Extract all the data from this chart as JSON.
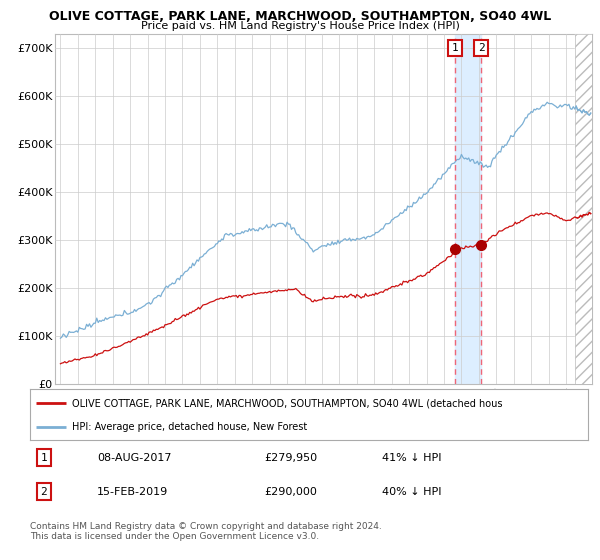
{
  "title1": "OLIVE COTTAGE, PARK LANE, MARCHWOOD, SOUTHAMPTON, SO40 4WL",
  "title2": "Price paid vs. HM Land Registry's House Price Index (HPI)",
  "ylabel_ticks": [
    "£0",
    "£100K",
    "£200K",
    "£300K",
    "£400K",
    "£500K",
    "£600K",
    "£700K"
  ],
  "ytick_vals": [
    0,
    100000,
    200000,
    300000,
    400000,
    500000,
    600000,
    700000
  ],
  "ylim": [
    0,
    730000
  ],
  "hpi_color": "#7bafd4",
  "price_color": "#cc1111",
  "marker_color": "#aa0000",
  "vline_color": "#ee6677",
  "shade_color": "#ddeeff",
  "sale1_x": 2017.625,
  "sale1_y": 279950,
  "sale2_x": 2019.125,
  "sale2_y": 290000,
  "legend_label1": "OLIVE COTTAGE, PARK LANE, MARCHWOOD, SOUTHAMPTON, SO40 4WL (detached hous",
  "legend_label2": "HPI: Average price, detached house, New Forest",
  "table_row1": [
    "1",
    "08-AUG-2017",
    "£279,950",
    "41% ↓ HPI"
  ],
  "table_row2": [
    "2",
    "15-FEB-2019",
    "£290,000",
    "40% ↓ HPI"
  ],
  "footnote": "Contains HM Land Registry data © Crown copyright and database right 2024.\nThis data is licensed under the Open Government Licence v3.0.",
  "background_color": "#ffffff",
  "grid_color": "#cccccc",
  "xlim_left": 1994.7,
  "xlim_right": 2025.5,
  "hatch_start": 2024.5
}
